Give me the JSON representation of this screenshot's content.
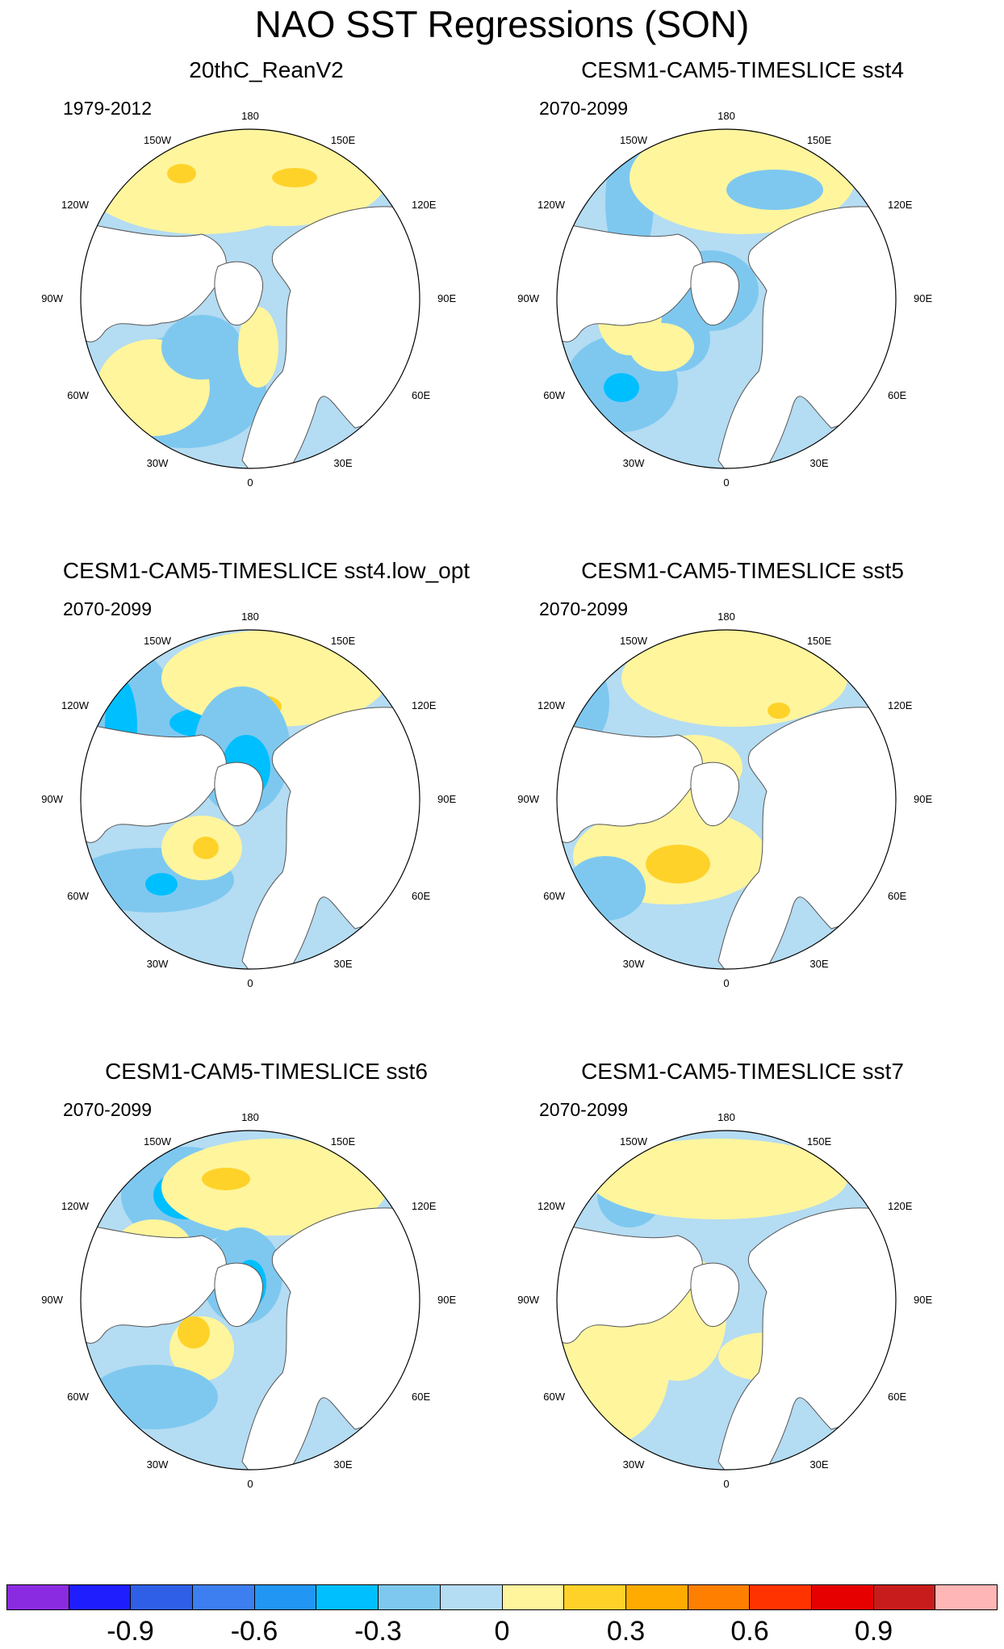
{
  "title": "NAO SST Regressions (SON)",
  "longitude_labels": {
    "top": "180",
    "bottom": "0",
    "left": "90W",
    "right": "90E",
    "upper_left": "150W",
    "upper_right": "150E",
    "mid_upper_left": "120W",
    "mid_upper_right": "120E",
    "lower_left": "60W",
    "lower_right": "60E",
    "bottom_left": "30W",
    "bottom_right": "30E"
  },
  "panels": [
    {
      "title": "20thC_ReanV2",
      "period": "1979-2012"
    },
    {
      "title": "CESM1-CAM5-TIMESLICE sst4",
      "period": "2070-2099"
    },
    {
      "title": "CESM1-CAM5-TIMESLICE sst4.low_opt",
      "period": "2070-2099"
    },
    {
      "title": "CESM1-CAM5-TIMESLICE sst5",
      "period": "2070-2099"
    },
    {
      "title": "CESM1-CAM5-TIMESLICE sst6",
      "period": "2070-2099"
    },
    {
      "title": "CESM1-CAM5-TIMESLICE sst7",
      "period": "2070-2099"
    }
  ],
  "colorbar": {
    "colors": [
      "#8a2be2",
      "#1e1eff",
      "#2f5fe6",
      "#3d7ef0",
      "#2196f3",
      "#00bfff",
      "#7ec8f0",
      "#b4dcf2",
      "#fff59d",
      "#ffd22a",
      "#ffab00",
      "#ff7f00",
      "#ff3300",
      "#e60000",
      "#c81c1c",
      "#ffb6b6"
    ],
    "labels": [
      "-0.9",
      "-0.6",
      "-0.3",
      "0",
      "0.3",
      "0.6",
      "0.9"
    ],
    "ocean_base": "#b4dcf2",
    "land": "#ffffff"
  }
}
